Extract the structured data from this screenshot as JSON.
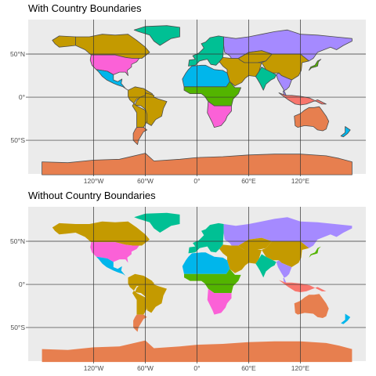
{
  "panels": [
    {
      "title": "With Country Boundaries",
      "boundaries": true
    },
    {
      "title": "Without Country Boundaries",
      "boundaries": false
    }
  ],
  "axes": {
    "x_ticks": [
      "120°W",
      "60°W",
      "0°",
      "60°E",
      "120°E"
    ],
    "y_ticks": [
      "50°N",
      "0°",
      "50°S"
    ]
  },
  "colors": {
    "panel_background": "#ebebeb",
    "grid": "#333333",
    "boundary": "#4d4d4d",
    "palette": [
      "#f8766d",
      "#c49a00",
      "#53b400",
      "#00c094",
      "#00b6eb",
      "#a58aff",
      "#fb61d7",
      "#e77f4f"
    ]
  },
  "regions": [
    {
      "name": "Canada",
      "fill": "#c49a00"
    },
    {
      "name": "Alaska",
      "fill": "#c49a00"
    },
    {
      "name": "Greenland",
      "fill": "#00c094"
    },
    {
      "name": "United States",
      "fill": "#fb61d7"
    },
    {
      "name": "Mexico",
      "fill": "#00b6eb"
    },
    {
      "name": "South America",
      "fill": "#c49a00"
    },
    {
      "name": "Brazil",
      "fill": "#c49a00"
    },
    {
      "name": "Argentina",
      "fill": "#e77f4f"
    },
    {
      "name": "Europe",
      "fill": "#00c094"
    },
    {
      "name": "Russia",
      "fill": "#a58aff"
    },
    {
      "name": "Kazakhstan",
      "fill": "#c49a00"
    },
    {
      "name": "China",
      "fill": "#c49a00"
    },
    {
      "name": "India",
      "fill": "#00c094"
    },
    {
      "name": "Middle East",
      "fill": "#c49a00"
    },
    {
      "name": "North Africa",
      "fill": "#00b6eb"
    },
    {
      "name": "Central Africa",
      "fill": "#53b400"
    },
    {
      "name": "Southern Africa",
      "fill": "#fb61d7"
    },
    {
      "name": "Southeast Asia",
      "fill": "#a58aff"
    },
    {
      "name": "Indonesia",
      "fill": "#f8766d"
    },
    {
      "name": "Australia",
      "fill": "#e77f4f"
    },
    {
      "name": "Antarctica",
      "fill": "#e77f4f"
    },
    {
      "name": "Japan",
      "fill": "#53b400"
    },
    {
      "name": "New Zealand",
      "fill": "#00b6eb"
    }
  ]
}
